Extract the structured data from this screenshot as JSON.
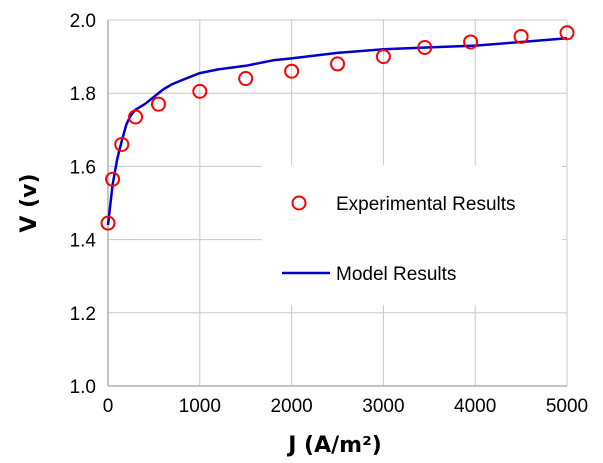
{
  "chart_data": {
    "type": "line",
    "xlabel": "J (A/m²)",
    "ylabel": "V (v)",
    "xlim": [
      0,
      5000
    ],
    "ylim": [
      1.0,
      2.0
    ],
    "xticks": [
      "0",
      "1000",
      "2000",
      "3000",
      "4000",
      "5000"
    ],
    "yticks": [
      "1.0",
      "1.2",
      "1.4",
      "1.6",
      "1.8",
      "2.0"
    ],
    "grid": true,
    "legend_position": "right",
    "series": [
      {
        "name": "Experimental Results",
        "kind": "scatter",
        "marker": "open-circle",
        "color": "#ff0000",
        "x": [
          0,
          50,
          150,
          300,
          550,
          1000,
          1500,
          2000,
          2500,
          3000,
          3450,
          3950,
          4500,
          5000
        ],
        "y": [
          1.445,
          1.565,
          1.66,
          1.735,
          1.77,
          1.805,
          1.84,
          1.86,
          1.88,
          1.9,
          1.925,
          1.94,
          1.955,
          1.965
        ]
      },
      {
        "name": "Model Results",
        "kind": "line",
        "color": "#0000cc",
        "x": [
          0,
          50,
          100,
          150,
          200,
          250,
          300,
          400,
          500,
          600,
          700,
          800,
          900,
          1000,
          1200,
          1500,
          1800,
          2000,
          2500,
          3000,
          3500,
          4000,
          4500,
          5000
        ],
        "y": [
          1.44,
          1.55,
          1.62,
          1.67,
          1.715,
          1.74,
          1.755,
          1.77,
          1.79,
          1.81,
          1.825,
          1.835,
          1.845,
          1.855,
          1.865,
          1.875,
          1.89,
          1.895,
          1.91,
          1.92,
          1.925,
          1.93,
          1.94,
          1.95
        ]
      }
    ]
  }
}
